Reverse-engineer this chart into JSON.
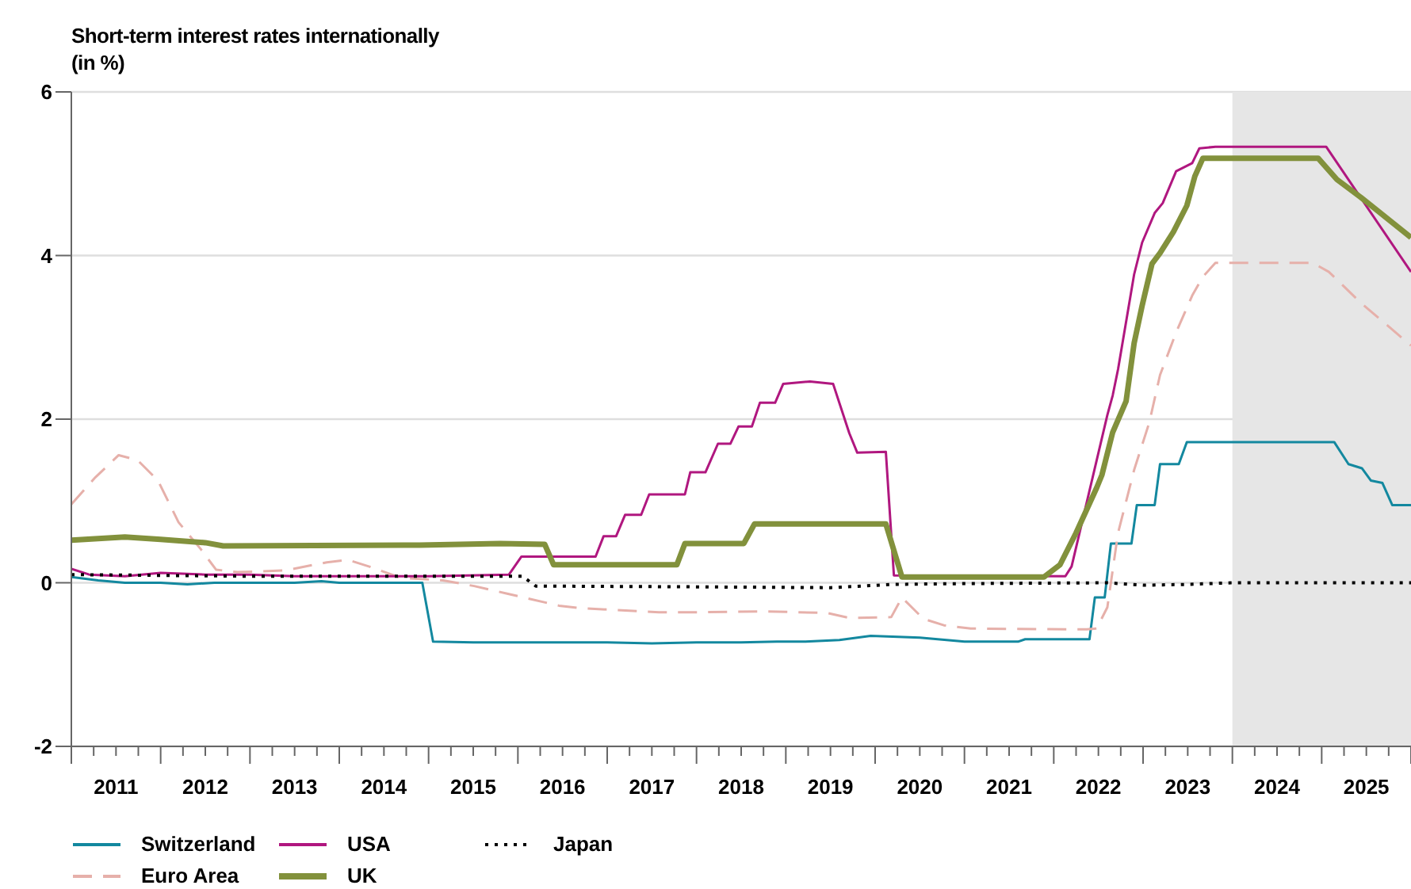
{
  "chart_data": {
    "type": "line",
    "title": "Short-term interest rates internationally",
    "subtitle": "(in %)",
    "xlim": [
      2011,
      2026
    ],
    "xticks": [
      {
        "value": 2011,
        "label": null
      },
      {
        "value": 2011.25,
        "label": null
      },
      {
        "value": 2011.5,
        "label": "2011"
      },
      {
        "value": 2011.75,
        "label": null
      },
      {
        "value": 2012,
        "label": null
      },
      {
        "value": 2012.25,
        "label": null
      },
      {
        "value": 2012.5,
        "label": "2012"
      },
      {
        "value": 2012.75,
        "label": null
      },
      {
        "value": 2013,
        "label": null
      },
      {
        "value": 2013.25,
        "label": null
      },
      {
        "value": 2013.5,
        "label": "2013"
      },
      {
        "value": 2013.75,
        "label": null
      },
      {
        "value": 2014,
        "label": null
      },
      {
        "value": 2014.25,
        "label": null
      },
      {
        "value": 2014.5,
        "label": "2014"
      },
      {
        "value": 2014.75,
        "label": null
      },
      {
        "value": 2015,
        "label": null
      },
      {
        "value": 2015.25,
        "label": null
      },
      {
        "value": 2015.5,
        "label": "2015"
      },
      {
        "value": 2015.75,
        "label": null
      },
      {
        "value": 2016,
        "label": null
      },
      {
        "value": 2016.25,
        "label": null
      },
      {
        "value": 2016.5,
        "label": "2016"
      },
      {
        "value": 2016.75,
        "label": null
      },
      {
        "value": 2017,
        "label": null
      },
      {
        "value": 2017.25,
        "label": null
      },
      {
        "value": 2017.5,
        "label": "2017"
      },
      {
        "value": 2017.75,
        "label": null
      },
      {
        "value": 2018,
        "label": null
      },
      {
        "value": 2018.25,
        "label": null
      },
      {
        "value": 2018.5,
        "label": "2018"
      },
      {
        "value": 2018.75,
        "label": null
      },
      {
        "value": 2019,
        "label": null
      },
      {
        "value": 2019.25,
        "label": null
      },
      {
        "value": 2019.5,
        "label": "2019"
      },
      {
        "value": 2019.75,
        "label": null
      },
      {
        "value": 2020,
        "label": null
      },
      {
        "value": 2020.25,
        "label": null
      },
      {
        "value": 2020.5,
        "label": "2020"
      },
      {
        "value": 2020.75,
        "label": null
      },
      {
        "value": 2021,
        "label": null
      },
      {
        "value": 2021.25,
        "label": null
      },
      {
        "value": 2021.5,
        "label": "2021"
      },
      {
        "value": 2021.75,
        "label": null
      },
      {
        "value": 2022,
        "label": null
      },
      {
        "value": 2022.25,
        "label": null
      },
      {
        "value": 2022.5,
        "label": "2022"
      },
      {
        "value": 2022.75,
        "label": null
      },
      {
        "value": 2023,
        "label": null
      },
      {
        "value": 2023.25,
        "label": null
      },
      {
        "value": 2023.5,
        "label": "2023"
      },
      {
        "value": 2023.75,
        "label": null
      },
      {
        "value": 2024,
        "label": null
      },
      {
        "value": 2024.25,
        "label": null
      },
      {
        "value": 2024.5,
        "label": "2024"
      },
      {
        "value": 2024.75,
        "label": null
      },
      {
        "value": 2025,
        "label": null
      },
      {
        "value": 2025.25,
        "label": null
      },
      {
        "value": 2025.5,
        "label": "2025"
      },
      {
        "value": 2025.75,
        "label": null
      },
      {
        "value": 2026,
        "label": null
      }
    ],
    "ylim": [
      -2,
      6
    ],
    "yticks": [
      -2,
      0,
      2,
      4,
      6
    ],
    "grid": "y",
    "legend": "bottom",
    "bands": [
      {
        "axis": "x",
        "from": 2024,
        "to": 2026,
        "color": "#e6e6e6"
      }
    ],
    "series": [
      {
        "name": "Switzerland",
        "color": "#13889f",
        "line_style": "solid",
        "x": [
          2011.0,
          2011.3,
          2011.6,
          2012.0,
          2012.3,
          2012.6,
          2013.0,
          2013.5,
          2013.8,
          2014.0,
          2014.5,
          2014.93,
          2015.05,
          2015.5,
          2016.0,
          2016.5,
          2017.0,
          2017.5,
          2018.0,
          2018.5,
          2018.9,
          2019.2,
          2019.6,
          2019.95,
          2020.5,
          2021.0,
          2021.6,
          2021.68,
          2022.4,
          2022.46,
          2022.57,
          2022.64,
          2022.87,
          2022.93,
          2023.13,
          2023.19,
          2023.4,
          2023.49,
          2025.14,
          2025.3,
          2025.45,
          2025.55,
          2025.68,
          2025.79,
          2026.0
        ],
        "values": [
          0.07,
          0.03,
          0.0,
          0.0,
          -0.02,
          0.0,
          0.0,
          0.0,
          0.02,
          0.0,
          0.0,
          0.0,
          -0.72,
          -0.73,
          -0.73,
          -0.73,
          -0.73,
          -0.74,
          -0.73,
          -0.73,
          -0.72,
          -0.72,
          -0.7,
          -0.65,
          -0.67,
          -0.72,
          -0.72,
          -0.69,
          -0.69,
          -0.18,
          -0.18,
          0.48,
          0.48,
          0.95,
          0.95,
          1.45,
          1.45,
          1.72,
          1.72,
          1.45,
          1.4,
          1.25,
          1.22,
          0.95,
          0.95
        ]
      },
      {
        "name": "Euro Area",
        "color": "#e6b0aa",
        "line_style": "dashed",
        "x": [
          2011.0,
          2011.27,
          2011.53,
          2011.74,
          2011.97,
          2012.2,
          2012.45,
          2012.62,
          2012.86,
          2013.39,
          2013.86,
          2014.1,
          2014.33,
          2014.69,
          2015.16,
          2015.51,
          2015.87,
          2016.46,
          2016.69,
          2017.58,
          2018.0,
          2018.77,
          2019.47,
          2019.71,
          2020.18,
          2020.3,
          2020.54,
          2020.77,
          2021.07,
          2022.37,
          2022.48,
          2022.6,
          2022.72,
          2022.9,
          2023.07,
          2023.19,
          2023.37,
          2023.55,
          2023.67,
          2023.81,
          2024.9,
          2025.08,
          2025.44,
          2026.0
        ],
        "values": [
          0.96,
          1.29,
          1.56,
          1.5,
          1.25,
          0.74,
          0.41,
          0.16,
          0.13,
          0.15,
          0.25,
          0.28,
          0.2,
          0.06,
          0.03,
          -0.04,
          -0.13,
          -0.28,
          -0.31,
          -0.36,
          -0.36,
          -0.35,
          -0.37,
          -0.43,
          -0.42,
          -0.18,
          -0.44,
          -0.52,
          -0.56,
          -0.57,
          -0.56,
          -0.3,
          0.61,
          1.38,
          1.96,
          2.54,
          3.06,
          3.51,
          3.74,
          3.91,
          3.91,
          3.8,
          3.42,
          2.9
        ]
      },
      {
        "name": "USA",
        "color": "#b0177f",
        "line_style": "solid",
        "x": [
          2011.0,
          2011.2,
          2011.6,
          2012.0,
          2012.5,
          2013.0,
          2013.5,
          2014.0,
          2015.0,
          2015.9,
          2016.04,
          2016.87,
          2016.96,
          2017.1,
          2017.2,
          2017.38,
          2017.47,
          2017.87,
          2017.93,
          2018.1,
          2018.24,
          2018.38,
          2018.47,
          2018.62,
          2018.71,
          2018.88,
          2018.97,
          2019.27,
          2019.53,
          2019.71,
          2019.8,
          2020.12,
          2020.21,
          2022.13,
          2022.2,
          2022.6,
          2022.66,
          2022.72,
          2022.9,
          2022.99,
          2023.13,
          2023.22,
          2023.37,
          2023.55,
          2023.63,
          2023.81,
          2025.05,
          2026.0
        ],
        "values": [
          0.17,
          0.1,
          0.08,
          0.12,
          0.1,
          0.1,
          0.08,
          0.08,
          0.08,
          0.1,
          0.32,
          0.32,
          0.57,
          0.57,
          0.83,
          0.83,
          1.08,
          1.08,
          1.35,
          1.35,
          1.7,
          1.7,
          1.91,
          1.91,
          2.2,
          2.2,
          2.43,
          2.46,
          2.43,
          1.83,
          1.59,
          1.6,
          0.09,
          0.08,
          0.2,
          2.05,
          2.29,
          2.61,
          3.77,
          4.16,
          4.52,
          4.64,
          5.03,
          5.13,
          5.31,
          5.33,
          5.33,
          3.8
        ]
      },
      {
        "name": "UK",
        "color": "#82913c",
        "line_style": "solid",
        "x": [
          2011.0,
          2011.6,
          2012.0,
          2012.5,
          2012.7,
          2014.9,
          2015.8,
          2016.3,
          2016.4,
          2017.78,
          2017.87,
          2018.53,
          2018.65,
          2020.12,
          2020.3,
          2021.89,
          2022.07,
          2022.25,
          2022.48,
          2022.54,
          2022.66,
          2022.81,
          2022.9,
          2022.99,
          2023.1,
          2023.19,
          2023.34,
          2023.49,
          2023.58,
          2023.67,
          2024.96,
          2025.17,
          2025.44,
          2026.0
        ],
        "values": [
          0.52,
          0.56,
          0.53,
          0.49,
          0.45,
          0.46,
          0.48,
          0.47,
          0.22,
          0.22,
          0.48,
          0.48,
          0.72,
          0.72,
          0.07,
          0.07,
          0.22,
          0.61,
          1.16,
          1.32,
          1.84,
          2.22,
          2.93,
          3.39,
          3.9,
          4.03,
          4.29,
          4.61,
          4.97,
          5.19,
          5.19,
          4.93,
          4.71,
          4.22
        ]
      },
      {
        "name": "Japan",
        "color": "#000000",
        "line_style": "dotted",
        "x": [
          2011.0,
          2013.0,
          2015.0,
          2016.05,
          2016.2,
          2018.0,
          2019.5,
          2020.2,
          2021.0,
          2022.6,
          2023.0,
          2023.5,
          2024.0,
          2026.0
        ],
        "values": [
          0.1,
          0.08,
          0.08,
          0.08,
          -0.04,
          -0.05,
          -0.06,
          -0.02,
          -0.01,
          0.0,
          -0.03,
          -0.02,
          0.0,
          0.0
        ]
      }
    ]
  }
}
